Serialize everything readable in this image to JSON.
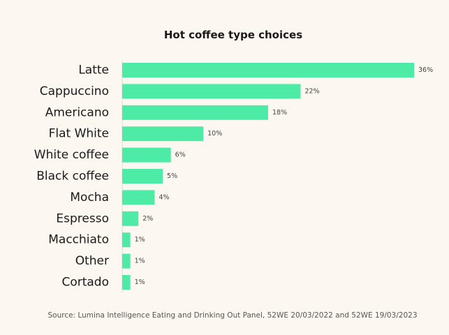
{
  "chart_data": {
    "type": "bar",
    "orientation": "horizontal",
    "title": "Hot coffee type choices",
    "categories": [
      "Latte",
      "Cappuccino",
      "Americano",
      "Flat White",
      "White coffee",
      "Black coffee",
      "Mocha",
      "Espresso",
      "Macchiato",
      "Other",
      "Cortado"
    ],
    "values": [
      36,
      22,
      18,
      10,
      6,
      5,
      4,
      2,
      1,
      1,
      1
    ],
    "value_labels": [
      "36%",
      "22%",
      "18%",
      "10%",
      "6%",
      "5%",
      "4%",
      "2%",
      "1%",
      "1%",
      "1%"
    ],
    "xlim": [
      0,
      36
    ],
    "grid": false,
    "legend": "none",
    "bar_color": "#4deba6",
    "source": "Source: Lumina Intelligence Eating and Drinking Out Panel, 52WE 20/03/2022 and 52WE 19/03/2023"
  },
  "colors": {
    "background": "#fcf8f1",
    "bar": "#4deba6",
    "axis": "#dddddd"
  }
}
